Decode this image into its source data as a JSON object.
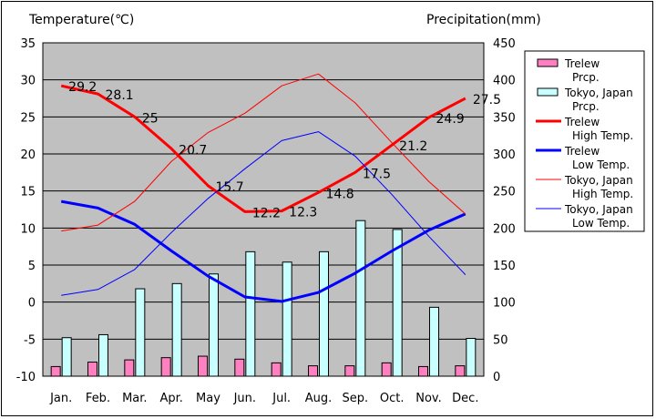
{
  "chart_data": {
    "type": "bar+line",
    "left_axis_title": "Temperature(℃)",
    "right_axis_title": "Precipitation(mm)",
    "left_ylim": [
      -10,
      35
    ],
    "left_ticks": [
      "35",
      "30",
      "25",
      "20",
      "15",
      "10",
      "5",
      "0",
      "-5",
      "-10"
    ],
    "right_ylim": [
      0,
      450
    ],
    "right_ticks": [
      "450",
      "400",
      "350",
      "300",
      "250",
      "200",
      "150",
      "100",
      "50",
      "0"
    ],
    "categories": [
      "Jan.",
      "Feb.",
      "Mar.",
      "Apr.",
      "May",
      "Jun.",
      "Jul.",
      "Aug.",
      "Sep.",
      "Oct.",
      "Nov.",
      "Dec."
    ],
    "grid": "horizontal",
    "legend_position": "right",
    "series": [
      {
        "name": "Trelew Prcp.",
        "kind": "bar",
        "axis": "right",
        "color": "#ff80c0",
        "values": [
          13,
          19,
          22,
          25,
          27,
          23,
          18,
          14,
          14,
          18,
          13,
          14
        ]
      },
      {
        "name": "Tokyo, Japan Prcp.",
        "kind": "bar",
        "axis": "right",
        "color": "#c8ffff",
        "values": [
          52,
          56,
          118,
          125,
          138,
          168,
          154,
          168,
          210,
          198,
          93,
          51
        ]
      },
      {
        "name": "Trelew High Temp.",
        "kind": "line",
        "axis": "left",
        "color": "#ff0000",
        "width": 3,
        "values": [
          29.2,
          28.1,
          25,
          20.7,
          15.7,
          12.2,
          12.3,
          14.8,
          17.5,
          21.2,
          24.9,
          27.5
        ],
        "labels": [
          "29.2",
          "28.1",
          "25",
          "20.7",
          "15.7",
          "12.2",
          "12.3",
          "14.8",
          "17.5",
          "21.2",
          "24.9",
          "27.5"
        ]
      },
      {
        "name": "Trelew Low Temp.",
        "kind": "line",
        "axis": "left",
        "color": "#0000ff",
        "width": 3,
        "values": [
          13.6,
          12.7,
          10.5,
          6.9,
          3.5,
          0.7,
          0.1,
          1.3,
          3.9,
          6.9,
          9.7,
          11.9
        ]
      },
      {
        "name": "Tokyo, Japan High Temp.",
        "kind": "line",
        "axis": "left",
        "color": "#ff0000",
        "width": 1,
        "values": [
          9.6,
          10.4,
          13.6,
          19.0,
          22.9,
          25.5,
          29.2,
          30.8,
          26.9,
          21.5,
          16.3,
          11.9
        ]
      },
      {
        "name": "Tokyo, Japan Low Temp.",
        "kind": "line",
        "axis": "left",
        "color": "#0000ff",
        "width": 1,
        "values": [
          0.9,
          1.7,
          4.4,
          9.4,
          14.0,
          18.0,
          21.8,
          23.0,
          19.7,
          14.5,
          8.9,
          3.7
        ]
      }
    ],
    "legend": [
      {
        "line1": "Trelew",
        "line2": "Prcp.",
        "swatch": "bar",
        "color": "#ff80c0"
      },
      {
        "line1": "Tokyo, Japan",
        "line2": "Prcp.",
        "swatch": "bar",
        "color": "#c8ffff"
      },
      {
        "line1": "Trelew",
        "line2": "High Temp.",
        "swatch": "line",
        "color": "#ff0000",
        "width": 3
      },
      {
        "line1": "Trelew",
        "line2": "Low Temp.",
        "swatch": "line",
        "color": "#0000ff",
        "width": 3
      },
      {
        "line1": "Tokyo, Japan",
        "line2": "High Temp.",
        "swatch": "line",
        "color": "#ff0000",
        "width": 1
      },
      {
        "line1": "Tokyo, Japan",
        "line2": "Low Temp.",
        "swatch": "line",
        "color": "#0000ff",
        "width": 1
      }
    ]
  }
}
